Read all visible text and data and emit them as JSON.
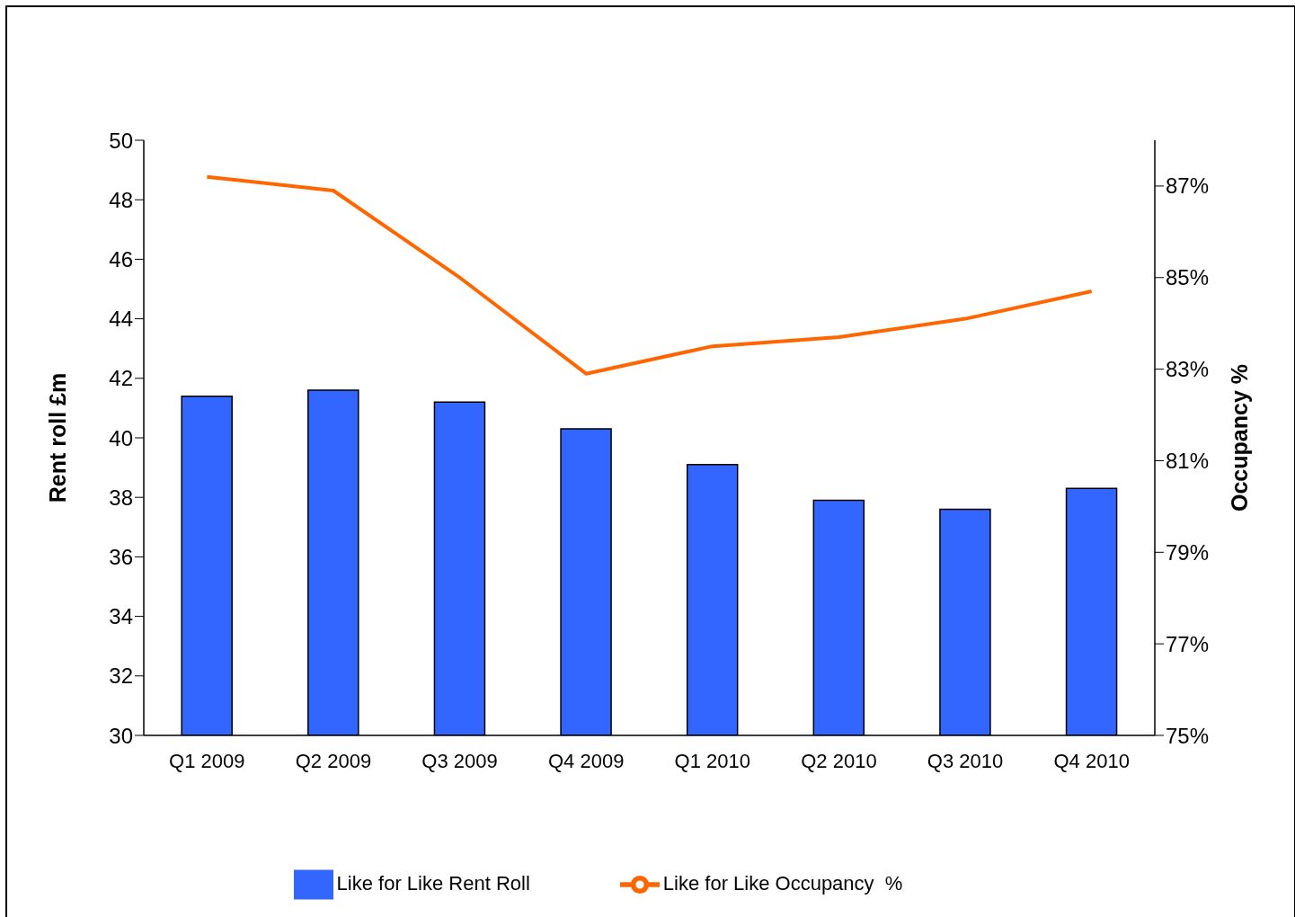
{
  "chart_data": {
    "type": "bar",
    "ylabel": "Rent roll £m",
    "y2label": "Occupancy %",
    "categories": [
      "Q1 2009",
      "Q2 2009",
      "Q3 2009",
      "Q4 2009",
      "Q1 2010",
      "Q2 2010",
      "Q3 2010",
      "Q4 2010"
    ],
    "series": [
      {
        "name": "Like for Like Rent Roll",
        "color": "#3366ff",
        "values": [
          41.4,
          41.6,
          41.2,
          40.3,
          39.1,
          37.9,
          37.6,
          38.3
        ]
      },
      {
        "name": "Like for Like Occupancy  %",
        "type": "line",
        "axis": "y2",
        "color": "#ff6600",
        "values": [
          87.2,
          86.9,
          85.0,
          82.9,
          83.5,
          83.7,
          84.1,
          84.7
        ]
      }
    ],
    "ylim": [
      30,
      50
    ],
    "yticks": [
      30,
      32,
      34,
      36,
      38,
      40,
      42,
      44,
      46,
      48,
      50
    ],
    "y2lim": [
      75,
      88
    ],
    "y2ticks": [
      {
        "value": 75,
        "label": "75%"
      },
      {
        "value": 77,
        "label": "77%"
      },
      {
        "value": 79,
        "label": "79%"
      },
      {
        "value": 81,
        "label": "81%"
      },
      {
        "value": 83,
        "label": "83%"
      },
      {
        "value": 85,
        "label": "85%"
      },
      {
        "value": 87,
        "label": "87%"
      }
    ],
    "grid": false,
    "legend": "bottom",
    "marker": "none",
    "line_style": "solid"
  }
}
